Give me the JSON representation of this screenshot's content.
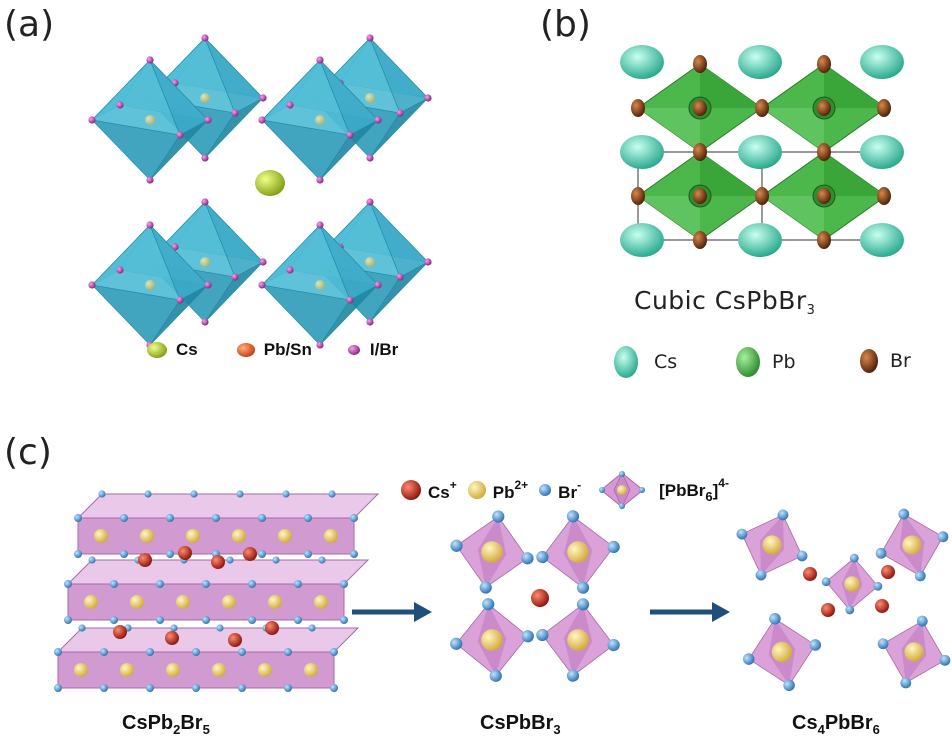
{
  "panel_a": {
    "letter": "(a)",
    "legend": [
      {
        "label": "Cs",
        "color": "#a6c21e"
      },
      {
        "label": "Pb/Sn",
        "color": "#e0531a"
      },
      {
        "label": "I/Br",
        "color": "#b3389f"
      }
    ],
    "octahedron_color": "#3fb6d1"
  },
  "panel_b": {
    "letter": "(b)",
    "title_main": "Cubic CsPbBr",
    "title_sub": "3",
    "legend": [
      {
        "label": "Cs",
        "color": "#4fd1b2"
      },
      {
        "label": "Pb",
        "color": "#3aa63a"
      },
      {
        "label": "Br",
        "color": "#7a3a12"
      }
    ]
  },
  "panel_c": {
    "letter": "(c)",
    "legend": {
      "cs": {
        "text": "Cs",
        "sup": "+",
        "color": "#b3261b"
      },
      "pb": {
        "text": "Pb",
        "sup": "2+",
        "color": "#e8e04a"
      },
      "br": {
        "text": "Br",
        "sup": "-",
        "color": "#6fb0e0"
      },
      "oct": {
        "text": "[PbBr",
        "sub": "6",
        "close": "]",
        "sup": "4-"
      }
    },
    "formulas": {
      "left": {
        "a": "CsPb",
        "b": "2",
        "c": "Br",
        "d": "5"
      },
      "middle": {
        "a": "CsPbBr",
        "b": "3"
      },
      "right": {
        "a": "Cs",
        "b": "4",
        "c": "PbBr",
        "d": "6"
      }
    },
    "octahedron_color": "#c98ac9",
    "arrow_color": "#1f4f7a"
  }
}
